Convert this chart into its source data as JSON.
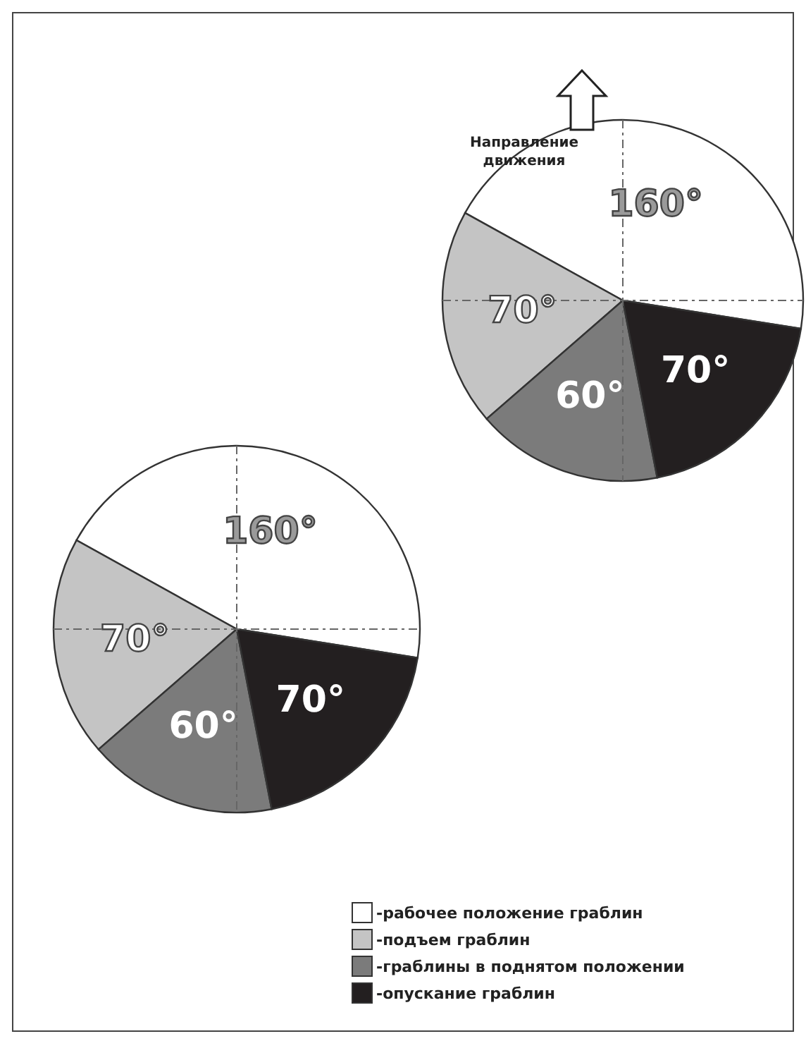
{
  "chart_data": [
    {
      "type": "pie",
      "categories": [
        null,
        null,
        null,
        null
      ],
      "values": [
        160,
        70,
        60,
        70
      ],
      "colors": [
        "#ffffff",
        "#c4c4c4",
        "#7b7b7b",
        "#231f20"
      ],
      "value_labels": [
        "160°",
        "70°",
        "60°",
        "70°"
      ],
      "legend": false,
      "annotations": [
        "Направление движения"
      ]
    },
    {
      "type": "pie",
      "categories": [
        "-рабочее положение граблин",
        "-подъем граблин",
        "-граблины в поднятом положении",
        "-опускание граблин"
      ],
      "values": [
        160,
        70,
        60,
        70
      ],
      "colors": [
        "#ffffff",
        "#c4c4c4",
        "#7b7b7b",
        "#231f20"
      ],
      "value_labels": [
        "160°",
        "70°",
        "60°",
        "70°"
      ],
      "legend": "bottom"
    }
  ]
}
